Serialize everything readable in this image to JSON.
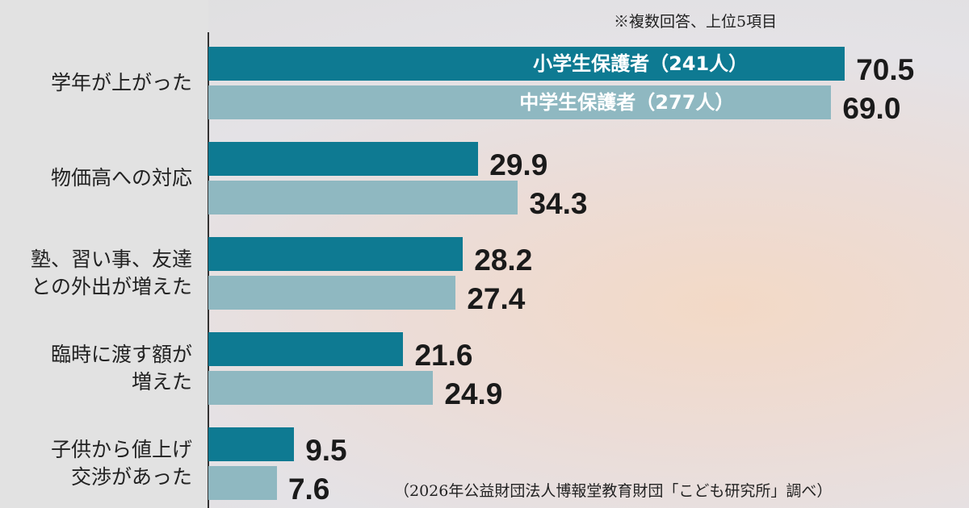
{
  "chart_data": {
    "type": "bar",
    "orientation": "horizontal",
    "note": "※複数回答、上位5項目",
    "source": "（2026年公益財団法人博報堂教育財団「こども研究所」調べ）",
    "categories": [
      "学年が上がった",
      "物価高への対応",
      "塾、習い事、友達\nとの外出が増えた",
      "臨時に渡す額が\n増えた",
      "子供から値上げ\n交渉があった"
    ],
    "series": [
      {
        "name": "小学生保護者（241人）",
        "color": "#0e7a92",
        "values": [
          70.5,
          29.9,
          28.2,
          21.6,
          9.5
        ],
        "value_labels": [
          "70.5",
          "29.9",
          "28.2",
          "21.6",
          "9.5"
        ]
      },
      {
        "name": "中学生保護者（277人）",
        "color": "#8fb8c1",
        "values": [
          69.0,
          34.3,
          27.4,
          24.9,
          7.6
        ],
        "value_labels": [
          "69.0",
          "34.3",
          "27.4",
          "24.9",
          "7.6"
        ]
      }
    ]
  }
}
